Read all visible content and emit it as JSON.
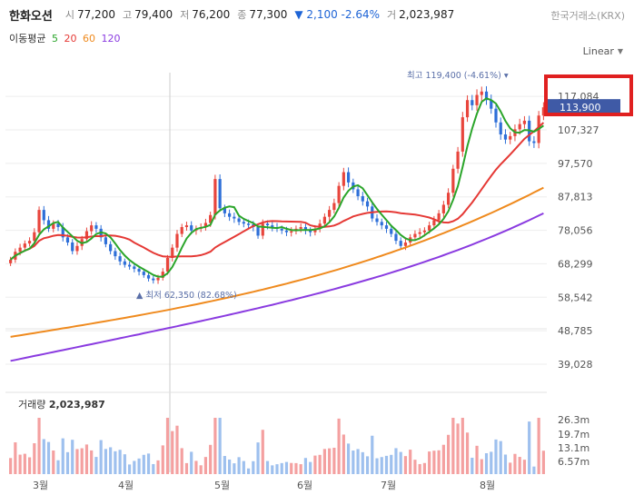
{
  "header": {
    "name": "한화오션",
    "open_label": "시",
    "open": "77,200",
    "high_label": "고",
    "high": "79,400",
    "low_label": "저",
    "low": "76,200",
    "close_label": "종",
    "close": "77,300",
    "change": "▼ 2,100 -2.64%",
    "volume_label": "거",
    "volume": "2,023,987",
    "exchange": "한국거래소(KRX)"
  },
  "moving_average": {
    "label": "이동평균",
    "periods": [
      {
        "value": "5",
        "color": "#2aa52a"
      },
      {
        "value": "20",
        "color": "#e53935"
      },
      {
        "value": "60",
        "color": "#ef8a1e"
      },
      {
        "value": "120",
        "color": "#8a3be0"
      }
    ]
  },
  "scale_mode": "Linear",
  "volume_legend": {
    "label": "거래량",
    "value": "2,023,987"
  },
  "chart_data": {
    "type": "candlestick",
    "x_labels": [
      "3월",
      "4월",
      "5월",
      "6월",
      "7월",
      "8월"
    ],
    "y_ticks": [
      117084,
      107327,
      97570,
      87813,
      78056,
      68299,
      58542,
      48785,
      39028
    ],
    "y_tick_labels": [
      "117,084",
      "107,327",
      "97,570",
      "87,813",
      "78,056",
      "68,299",
      "58,542",
      "48,785",
      "39,028"
    ],
    "ylim": [
      34000,
      124000
    ],
    "current_price": {
      "value": 113900,
      "label": "113,900"
    },
    "annotations": [
      {
        "text": "최고 119,400 (-4.61%)",
        "value": 119400
      },
      {
        "text": "최저 62,350 (82.68%)",
        "value": 62350
      }
    ],
    "closes": [
      69500,
      71800,
      73000,
      74200,
      75000,
      77500,
      84000,
      81000,
      78500,
      80000,
      79000,
      76000,
      74500,
      72000,
      73500,
      75500,
      77800,
      79500,
      78500,
      76000,
      74000,
      72000,
      70500,
      69000,
      68000,
      67500,
      66800,
      66000,
      65000,
      64000,
      63500,
      64200,
      66000,
      70000,
      73000,
      77000,
      79000,
      79500,
      78000,
      78500,
      79000,
      80200,
      82500,
      93000,
      84500,
      83000,
      82000,
      81500,
      80500,
      80000,
      79800,
      79000,
      76500,
      80000,
      79500,
      79000,
      78500,
      78000,
      77500,
      77800,
      78500,
      79000,
      78000,
      77500,
      78500,
      80000,
      82000,
      84000,
      86000,
      91000,
      95000,
      92000,
      90000,
      88000,
      86500,
      85000,
      81500,
      80500,
      79500,
      78500,
      77000,
      75000,
      73500,
      74500,
      76000,
      77000,
      77500,
      78000,
      79500,
      81000,
      83000,
      85500,
      89000,
      96000,
      101000,
      111000,
      116000,
      114500,
      117500,
      118500,
      116000,
      113500,
      109500,
      106000,
      104500,
      105500,
      107500,
      109000,
      110000,
      104000,
      103500,
      111500,
      113900
    ],
    "volume": {
      "label": "거래량",
      "value": "2,023,987",
      "y_ticks": [
        "26.3m",
        "19.7m",
        "13.1m",
        "6.57m"
      ]
    },
    "series": [
      {
        "name": "5",
        "color": "#2aa52a"
      },
      {
        "name": "20",
        "color": "#e53935"
      },
      {
        "name": "60",
        "color": "#ef8a1e"
      },
      {
        "name": "120",
        "color": "#8a3be0"
      }
    ],
    "grid": true
  }
}
